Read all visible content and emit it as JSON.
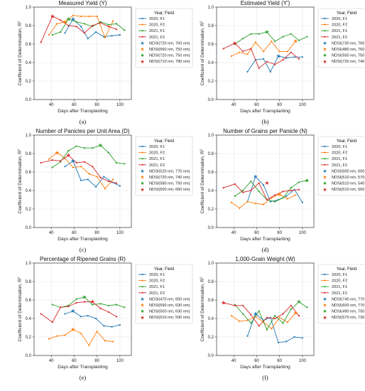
{
  "colors": {
    "2020, F1": "#1f77b4",
    "2020, F2": "#ff7f0e",
    "2021, F1": "#2ca02c",
    "2021, F2": "#d62728"
  },
  "chart_data": [
    {
      "type": "line",
      "title": "Measured Yield (Y)",
      "panel_label": "(a)",
      "xlabel": "Days after Transplanting",
      "ylabel": "Coefficient of Determination, R",
      "xlim": [
        25,
        110
      ],
      "ylim": [
        0,
        1.0
      ],
      "xticks": [
        "40",
        "60",
        "80",
        "100"
      ],
      "yticks": [
        "0.0",
        "0.2",
        "0.4",
        "0.6",
        "0.8",
        "1.0"
      ],
      "grid": true,
      "legend": {
        "title": "Year, Field",
        "position": "right"
      },
      "series": [
        {
          "name": "2020, F1",
          "x": [
            52,
            59,
            66,
            72,
            79,
            86,
            93,
            100
          ],
          "y": [
            0.72,
            0.87,
            0.79,
            0.66,
            0.73,
            0.68,
            0.69,
            0.7
          ]
        },
        {
          "name": "2020, F2",
          "x": [
            38,
            45,
            52,
            59,
            66,
            73,
            80,
            87,
            94
          ],
          "y": [
            0.7,
            0.82,
            0.84,
            0.91,
            0.9,
            0.9,
            0.9,
            0.67,
            0.85
          ]
        },
        {
          "name": "2021, F1",
          "x": [
            41,
            48,
            55,
            62,
            69,
            76,
            83,
            90,
            97,
            104
          ],
          "y": [
            0.7,
            0.73,
            0.87,
            0.84,
            0.82,
            0.79,
            0.84,
            0.81,
            0.82,
            0.75
          ]
        },
        {
          "name": "2021, F2",
          "x": [
            31,
            41,
            48,
            55,
            62,
            69,
            76,
            83,
            90,
            97
          ],
          "y": [
            0.62,
            0.9,
            0.86,
            0.8,
            0.79,
            0.72,
            0.8,
            0.83,
            0.79,
            0.76
          ]
        }
      ],
      "markers": [
        {
          "name": "NDSI(720 nm, 760 nm)",
          "x": 59,
          "y": 0.87,
          "color": "#1f77b4"
        },
        {
          "name": "NDSI(560 nm, 750 nm)",
          "x": 52,
          "y": 0.84,
          "color": "#ff7f0e"
        },
        {
          "name": "NDSI(720 nm, 750 nm)",
          "x": 55,
          "y": 0.87,
          "color": "#2ca02c"
        },
        {
          "name": "NDSI(710 nm, 780 nm)",
          "x": 41,
          "y": 0.9,
          "color": "#d62728"
        }
      ]
    },
    {
      "type": "line",
      "title": "Estimated Yield (Y')",
      "panel_label": "(b)",
      "xlabel": "Days after Transplanting",
      "ylabel": "Coefficient of Determination, R",
      "xlim": [
        25,
        110
      ],
      "ylim": [
        0,
        1.0
      ],
      "xticks": [
        "40",
        "60",
        "80",
        "100"
      ],
      "yticks": [
        "0.0",
        "0.2",
        "0.4",
        "0.6",
        "0.8",
        "1.0"
      ],
      "grid": true,
      "legend": {
        "title": "Year, Field",
        "position": "right"
      },
      "series": [
        {
          "name": "2020, F1",
          "x": [
            52,
            59,
            66,
            72,
            79,
            86,
            93,
            100
          ],
          "y": [
            0.3,
            0.43,
            0.44,
            0.3,
            0.47,
            0.45,
            0.46,
            0.46
          ]
        },
        {
          "name": "2020, F2",
          "x": [
            38,
            45,
            52,
            59,
            66,
            73,
            80,
            87,
            94
          ],
          "y": [
            0.47,
            0.51,
            0.49,
            0.62,
            0.52,
            0.63,
            0.52,
            0.52,
            0.63
          ]
        },
        {
          "name": "2021, F1",
          "x": [
            41,
            48,
            55,
            62,
            69,
            76,
            83,
            90,
            97,
            104
          ],
          "y": [
            0.6,
            0.66,
            0.71,
            0.71,
            0.73,
            0.63,
            0.68,
            0.71,
            0.64,
            0.68
          ]
        },
        {
          "name": "2021, F2",
          "x": [
            31,
            41,
            48,
            55,
            62,
            69,
            76,
            83,
            90,
            97
          ],
          "y": [
            0.55,
            0.61,
            0.52,
            0.55,
            0.34,
            0.41,
            0.38,
            0.43,
            0.51,
            0.44
          ]
        }
      ],
      "markers": [
        {
          "name": "NDSI(730 nm, 760 nm)",
          "x": 79,
          "y": 0.47,
          "color": "#1f77b4"
        },
        {
          "name": "NDSI(480 nm, 760 nm)",
          "x": 94,
          "y": 0.63,
          "color": "#ff7f0e"
        },
        {
          "name": "NDSI(550 nm, 750 nm)",
          "x": 69,
          "y": 0.73,
          "color": "#2ca02c"
        },
        {
          "name": "NDSI(720 nm, 740 nm)",
          "x": 41,
          "y": 0.61,
          "color": "#d62728"
        }
      ]
    },
    {
      "type": "line",
      "title": "Number of Panicles per Unit Area (D)",
      "panel_label": "(c)",
      "xlabel": "Days after Transplanting",
      "ylabel": "Coefficient of Determination, R",
      "xlim": [
        25,
        110
      ],
      "ylim": [
        0,
        1.0
      ],
      "xticks": [
        "40",
        "60",
        "80",
        "100"
      ],
      "yticks": [
        "0.0",
        "0.2",
        "0.4",
        "0.6",
        "0.8",
        "1.0"
      ],
      "grid": true,
      "legend": {
        "title": "Year, Field",
        "position": "right"
      },
      "series": [
        {
          "name": "2020, F1",
          "x": [
            52,
            59,
            66,
            72,
            79,
            86,
            93,
            100
          ],
          "y": [
            0.66,
            0.72,
            0.51,
            0.52,
            0.44,
            0.55,
            0.49,
            0.45
          ]
        },
        {
          "name": "2020, F2",
          "x": [
            38,
            45,
            52,
            59,
            66,
            73,
            80,
            87,
            94
          ],
          "y": [
            0.74,
            0.81,
            0.75,
            0.65,
            0.66,
            0.58,
            0.55,
            0.42,
            0.52
          ]
        },
        {
          "name": "2021, F1",
          "x": [
            41,
            48,
            55,
            62,
            69,
            76,
            83,
            90,
            97,
            104
          ],
          "y": [
            0.65,
            0.71,
            0.83,
            0.88,
            0.86,
            0.86,
            0.89,
            0.81,
            0.7,
            0.69
          ]
        },
        {
          "name": "2021, F2",
          "x": [
            31,
            41,
            48,
            55,
            62,
            69,
            76,
            83,
            90,
            97
          ],
          "y": [
            0.7,
            0.73,
            0.72,
            0.78,
            0.7,
            0.71,
            0.66,
            0.54,
            0.5,
            0.48
          ]
        }
      ],
      "markers": [
        {
          "name": "NDSI(520 nm, 770 nm)",
          "x": 59,
          "y": 0.72,
          "color": "#1f77b4"
        },
        {
          "name": "NDSI(720 nm, 740 nm)",
          "x": 45,
          "y": 0.81,
          "color": "#ff7f0e"
        },
        {
          "name": "NDSI(580 nm, 750 nm)",
          "x": 83,
          "y": 0.89,
          "color": "#2ca02c"
        },
        {
          "name": "NDSI(500 nm, 660 nm)",
          "x": 55,
          "y": 0.78,
          "color": "#d62728"
        }
      ]
    },
    {
      "type": "line",
      "title": "Number of Grains per Panicle (N)",
      "panel_label": "(d)",
      "xlabel": "Days after Transplanting",
      "ylabel": "Coefficient of Determination, R",
      "xlim": [
        25,
        110
      ],
      "ylim": [
        0,
        1.0
      ],
      "xticks": [
        "40",
        "60",
        "80",
        "100"
      ],
      "yticks": [
        "0.0",
        "0.2",
        "0.4",
        "0.6",
        "0.8",
        "1.0"
      ],
      "grid": true,
      "legend": {
        "title": "Year, Field",
        "position": "right"
      },
      "series": [
        {
          "name": "2020, F1",
          "x": [
            52,
            59,
            66,
            72,
            79,
            86,
            93,
            100
          ],
          "y": [
            0.28,
            0.55,
            0.46,
            0.28,
            0.3,
            0.34,
            0.41,
            0.27
          ]
        },
        {
          "name": "2020, F2",
          "x": [
            38,
            45,
            52,
            59,
            66,
            73,
            80,
            87,
            94
          ],
          "y": [
            0.27,
            0.21,
            0.28,
            0.26,
            0.25,
            0.32,
            0.36,
            0.31,
            0.35
          ]
        },
        {
          "name": "2021, F1",
          "x": [
            41,
            48,
            55,
            62,
            69,
            76,
            83,
            90,
            97,
            104
          ],
          "y": [
            0.34,
            0.4,
            0.5,
            0.39,
            0.3,
            0.28,
            0.32,
            0.43,
            0.49,
            0.51
          ]
        },
        {
          "name": "2021, F2",
          "x": [
            31,
            41,
            48,
            55,
            62,
            69,
            76,
            83,
            90,
            97
          ],
          "y": [
            0.43,
            0.47,
            0.38,
            0.4,
            0.48,
            0.3,
            0.35,
            0.39,
            0.4,
            0.41
          ]
        }
      ],
      "markers": [
        {
          "name": "NDSI(500 nm, 600 nm)",
          "x": 59,
          "y": 0.55,
          "color": "#1f77b4"
        },
        {
          "name": "NDSI(510 nm, 570 nm)",
          "x": 80,
          "y": 0.36,
          "color": "#ff7f0e"
        },
        {
          "name": "NDSI(510 nm, 540 nm)",
          "x": 104,
          "y": 0.51,
          "color": "#2ca02c"
        },
        {
          "name": "NDSI(510 nm, 560 nm)",
          "x": 69,
          "y": 0.48,
          "color": "#d62728"
        }
      ]
    },
    {
      "type": "line",
      "title": "Percentage of Ripened Grains (R)",
      "panel_label": "(e)",
      "xlabel": "Days after Transplanting",
      "ylabel": "Coefficient of Determination, R",
      "xlim": [
        25,
        110
      ],
      "ylim": [
        0,
        1.0
      ],
      "xticks": [
        "40",
        "60",
        "80",
        "100"
      ],
      "yticks": [
        "0.0",
        "0.2",
        "0.4",
        "0.6",
        "0.8",
        "1.0"
      ],
      "grid": true,
      "legend": {
        "title": "Year, Field",
        "position": "right"
      },
      "series": [
        {
          "name": "2020, F1",
          "x": [
            52,
            59,
            66,
            72,
            79,
            86,
            93,
            100
          ],
          "y": [
            0.45,
            0.48,
            0.42,
            0.43,
            0.4,
            0.32,
            0.31,
            0.33
          ]
        },
        {
          "name": "2020, F2",
          "x": [
            38,
            45,
            52,
            59,
            66,
            73,
            80,
            87,
            94
          ],
          "y": [
            0.18,
            0.21,
            0.22,
            0.28,
            0.24,
            0.11,
            0.26,
            0.16,
            0.15
          ]
        },
        {
          "name": "2021, F1",
          "x": [
            41,
            48,
            55,
            62,
            69,
            76,
            83,
            90,
            97,
            104
          ],
          "y": [
            0.55,
            0.52,
            0.54,
            0.61,
            0.63,
            0.55,
            0.56,
            0.54,
            0.55,
            0.52
          ]
        },
        {
          "name": "2021, F2",
          "x": [
            31,
            41,
            48,
            55,
            62,
            69,
            76,
            83,
            90,
            97
          ],
          "y": [
            0.45,
            0.36,
            0.52,
            0.53,
            0.57,
            0.58,
            0.58,
            0.51,
            0.47,
            0.42
          ]
        }
      ],
      "markers": [
        {
          "name": "NDSI(470 nm, 650 nm)",
          "x": 59,
          "y": 0.48,
          "color": "#1f77b4"
        },
        {
          "name": "NDSI(590 nm, 630 nm)",
          "x": 59,
          "y": 0.28,
          "color": "#ff7f0e"
        },
        {
          "name": "NDSI(500 nm, 630 nm)",
          "x": 69,
          "y": 0.63,
          "color": "#2ca02c"
        },
        {
          "name": "NDSI(510 nm, 590 nm)",
          "x": 76,
          "y": 0.58,
          "color": "#d62728"
        }
      ]
    },
    {
      "type": "line",
      "title": "1,000-Grain Weight (W)",
      "panel_label": "(f)",
      "xlabel": "Days after Transplanting",
      "ylabel": "Coefficient of Determination, R",
      "xlim": [
        25,
        110
      ],
      "ylim": [
        0,
        1.0
      ],
      "xticks": [
        "40",
        "60",
        "80",
        "100"
      ],
      "yticks": [
        "0.0",
        "0.2",
        "0.4",
        "0.6",
        "0.8",
        "1.0"
      ],
      "grid": true,
      "legend": {
        "title": "Year, Field",
        "position": "right"
      },
      "series": [
        {
          "name": "2020, F1",
          "x": [
            52,
            59,
            66,
            72,
            79,
            86,
            93,
            100
          ],
          "y": [
            0.21,
            0.45,
            0.38,
            0.41,
            0.14,
            0.15,
            0.2,
            0.19
          ]
        },
        {
          "name": "2020, F2",
          "x": [
            38,
            45,
            52,
            59,
            66,
            73,
            80,
            87,
            94
          ],
          "y": [
            0.43,
            0.37,
            0.38,
            0.42,
            0.36,
            0.29,
            0.41,
            0.36,
            0.46
          ]
        },
        {
          "name": "2021, F1",
          "x": [
            41,
            48,
            55,
            62,
            69,
            76,
            83,
            90,
            97,
            104
          ],
          "y": [
            0.55,
            0.45,
            0.35,
            0.48,
            0.28,
            0.43,
            0.35,
            0.5,
            0.58,
            0.52
          ]
        },
        {
          "name": "2021, F2",
          "x": [
            31,
            41,
            48,
            55,
            62,
            69,
            76,
            83,
            90,
            97
          ],
          "y": [
            0.57,
            0.54,
            0.54,
            0.44,
            0.32,
            0.41,
            0.4,
            0.45,
            0.54,
            0.43
          ]
        }
      ],
      "markers": [
        {
          "name": "NDSI(740 nm, 770 nm)",
          "x": 59,
          "y": 0.45,
          "color": "#1f77b4"
        },
        {
          "name": "NDSI(600 nm, 770 nm)",
          "x": 94,
          "y": 0.46,
          "color": "#ff7f0e"
        },
        {
          "name": "NDSI(490 nm, 700 nm)",
          "x": 97,
          "y": 0.58,
          "color": "#2ca02c"
        },
        {
          "name": "NDSI(570 nm, 730 nm)",
          "x": 31,
          "y": 0.57,
          "color": "#d62728"
        }
      ]
    }
  ]
}
